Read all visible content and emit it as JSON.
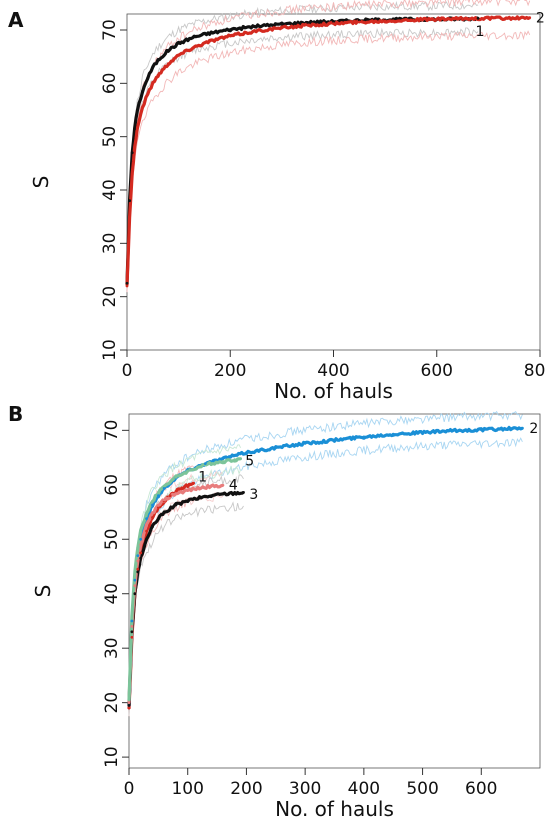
{
  "chart_data": [
    {
      "panel": "A",
      "type": "line",
      "title": "",
      "xlabel": "No. of hauls",
      "ylabel": "S",
      "xlim": [
        0,
        800
      ],
      "ylim": [
        10,
        73
      ],
      "xticks": [
        0,
        200,
        400,
        600,
        800
      ],
      "yticks": [
        10,
        20,
        30,
        40,
        50,
        60,
        70
      ],
      "grid": false,
      "series": [
        {
          "name": "1",
          "color": "#111111",
          "band_color": "#c8c8c8",
          "band_width": 2.5,
          "x": [
            0,
            5,
            10,
            15,
            20,
            30,
            40,
            50,
            60,
            80,
            100,
            130,
            160,
            200,
            250,
            300,
            350,
            400,
            450,
            500,
            550,
            600,
            650,
            680
          ],
          "y": [
            22.5,
            38,
            47,
            51.5,
            55,
            58.5,
            61,
            63,
            64.3,
            66.2,
            67.5,
            68.7,
            69.4,
            70.1,
            70.7,
            71.1,
            71.4,
            71.6,
            71.8,
            71.9,
            72.0,
            72.0,
            72.1,
            72.2
          ]
        },
        {
          "name": "2",
          "color": "#d42a20",
          "band_color": "#f2b8b8",
          "band_width": 3.2,
          "x": [
            0,
            5,
            10,
            15,
            20,
            30,
            40,
            50,
            60,
            80,
            100,
            130,
            160,
            200,
            250,
            300,
            350,
            400,
            450,
            500,
            550,
            600,
            650,
            700,
            750,
            780
          ],
          "y": [
            22,
            35,
            43,
            48,
            51.5,
            55.5,
            58,
            60,
            61.5,
            63.7,
            65.3,
            66.8,
            67.9,
            68.9,
            69.8,
            70.4,
            70.9,
            71.2,
            71.5,
            71.7,
            71.9,
            72.0,
            72.1,
            72.2,
            72.2,
            72.3
          ]
        }
      ],
      "end_labels": [
        {
          "text": "1",
          "x": 675,
          "y": 69.8
        },
        {
          "text": "2",
          "x": 792,
          "y": 72.3
        }
      ]
    },
    {
      "panel": "B",
      "type": "line",
      "title": "",
      "xlabel": "No. of hauls",
      "ylabel": "S",
      "xlim": [
        0,
        700
      ],
      "ylim": [
        8,
        73
      ],
      "xticks": [
        0,
        100,
        200,
        300,
        400,
        500,
        600
      ],
      "yticks": [
        10,
        20,
        30,
        40,
        50,
        60,
        70
      ],
      "grid": false,
      "series": [
        {
          "name": "1",
          "color": "#d42a20",
          "band_color": "#f2b8b8",
          "band_width": 3,
          "x": [
            0,
            5,
            10,
            15,
            20,
            30,
            40,
            50,
            60,
            70,
            80,
            90,
            100,
            110
          ],
          "y": [
            19,
            32,
            40,
            44.5,
            47.5,
            51.5,
            54,
            55.8,
            57,
            58,
            58.8,
            59.4,
            59.9,
            60.3
          ]
        },
        {
          "name": "2",
          "color": "#1a8fd6",
          "band_color": "#a9d6f2",
          "band_width": 2.5,
          "x": [
            0,
            5,
            10,
            15,
            20,
            30,
            40,
            50,
            60,
            80,
            100,
            130,
            160,
            200,
            250,
            300,
            350,
            400,
            450,
            500,
            550,
            600,
            650,
            670
          ],
          "y": [
            19.5,
            35,
            42.5,
            47,
            50,
            53.8,
            56.3,
            58,
            59.4,
            61.3,
            62.6,
            63.9,
            64.8,
            65.9,
            66.8,
            67.6,
            68.2,
            68.8,
            69.3,
            69.6,
            69.9,
            70.1,
            70.3,
            70.4
          ]
        },
        {
          "name": "3",
          "color": "#111111",
          "band_color": "#c8c8c8",
          "band_width": 2.5,
          "x": [
            0,
            5,
            10,
            15,
            20,
            30,
            40,
            50,
            60,
            80,
            100,
            120,
            140,
            160,
            180,
            195
          ],
          "y": [
            19.5,
            33,
            40,
            44,
            46.5,
            50,
            52.3,
            53.8,
            54.9,
            56.3,
            57.1,
            57.6,
            58.0,
            58.3,
            58.5,
            58.6
          ]
        },
        {
          "name": "4",
          "color": "#e87c7c",
          "band_color": "#f5cccc",
          "band_width": 2,
          "x": [
            0,
            5,
            10,
            15,
            20,
            30,
            40,
            50,
            60,
            80,
            100,
            120,
            140,
            160
          ],
          "y": [
            20,
            34,
            41.5,
            46,
            49,
            52.5,
            54.8,
            56.2,
            57.2,
            58.4,
            59.0,
            59.4,
            59.7,
            59.9
          ]
        },
        {
          "name": "5",
          "color": "#7cc49a",
          "band_color": "#c9e8d5",
          "band_width": 2,
          "x": [
            0,
            5,
            10,
            15,
            20,
            30,
            40,
            50,
            60,
            80,
            100,
            120,
            140,
            160,
            180,
            190
          ],
          "y": [
            20.5,
            36,
            44,
            48.5,
            51.5,
            54.8,
            57,
            58.6,
            59.8,
            61.4,
            62.5,
            63.3,
            63.9,
            64.3,
            64.6,
            64.8
          ]
        }
      ],
      "end_labels": [
        {
          "text": "1",
          "x": 118,
          "y": 61.5
        },
        {
          "text": "2",
          "x": 682,
          "y": 70.4
        },
        {
          "text": "3",
          "x": 205,
          "y": 58.3
        },
        {
          "text": "4",
          "x": 170,
          "y": 60.1
        },
        {
          "text": "5",
          "x": 198,
          "y": 64.5
        }
      ]
    }
  ],
  "panels": {
    "a": {
      "label": "A"
    },
    "b": {
      "label": "B"
    }
  }
}
